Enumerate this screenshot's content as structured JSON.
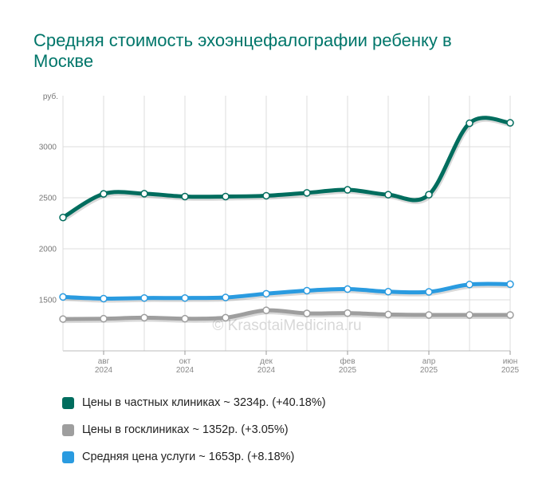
{
  "title": "Средняя стоимость эхоэнцефалографии ребенку в Москве",
  "watermark": "© KrasotaiMedicina.ru",
  "colors": {
    "private": "#006d5e",
    "public": "#9e9e9e",
    "average": "#2a9be0"
  },
  "legend": [
    {
      "label": "Цены в частных клиниках ~ 3234р. (+40.18%)",
      "color": "#006d5e"
    },
    {
      "label": "Цены в госклиниках ~ 1352р. (+3.05%)",
      "color": "#9e9e9e"
    },
    {
      "label": "Средняя цена услуги ~ 1653р. (+8.18%)",
      "color": "#2a9be0"
    }
  ],
  "chart_data": {
    "type": "line",
    "title": "Средняя стоимость эхоэнцефалографии ребенку в Москве",
    "ylabel": "руб.",
    "ylim": [
      1000,
      3500
    ],
    "yticks": [
      1500,
      2000,
      2500,
      3000
    ],
    "x": [
      "2024-07",
      "2024-08",
      "2024-09",
      "2024-10",
      "2024-11",
      "2024-12",
      "2025-01",
      "2025-02",
      "2025-03",
      "2025-04",
      "2025-05",
      "2025-06"
    ],
    "xticks": [
      {
        "month": "авг",
        "year": "2024",
        "index": 1
      },
      {
        "month": "окт",
        "year": "2024",
        "index": 3
      },
      {
        "month": "дек",
        "year": "2024",
        "index": 5
      },
      {
        "month": "фев",
        "year": "2025",
        "index": 7
      },
      {
        "month": "апр",
        "year": "2025",
        "index": 9
      },
      {
        "month": "июн",
        "year": "2025",
        "index": 11
      }
    ],
    "series": [
      {
        "name": "Цены в частных клиниках",
        "key": "private",
        "values": [
          2307,
          2538,
          2540,
          2512,
          2512,
          2520,
          2548,
          2578,
          2530,
          2530,
          3230,
          3234
        ]
      },
      {
        "name": "Цены в госклиниках",
        "key": "public",
        "values": [
          1312,
          1315,
          1325,
          1315,
          1325,
          1397,
          1367,
          1370,
          1356,
          1352,
          1352,
          1352
        ]
      },
      {
        "name": "Средняя цена услуги",
        "key": "average",
        "values": [
          1528,
          1512,
          1518,
          1518,
          1523,
          1560,
          1590,
          1605,
          1580,
          1578,
          1650,
          1653
        ]
      }
    ]
  }
}
